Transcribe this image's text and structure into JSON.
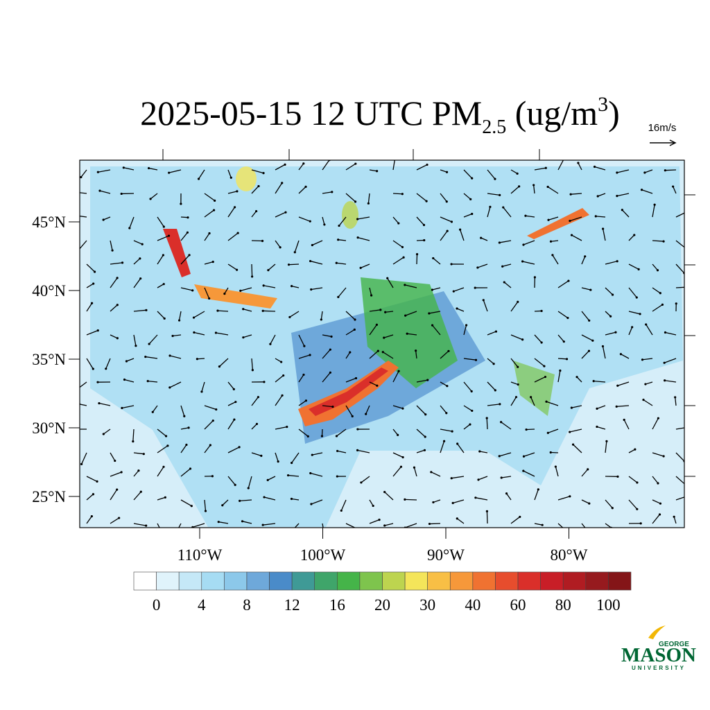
{
  "title": {
    "main": "2025-05-15 12 UTC PM",
    "sub": "2.5",
    "mid": " (ug/m",
    "sup": "3",
    "end": ")"
  },
  "wind_reference": {
    "label": "16m/s"
  },
  "map": {
    "lat_ticks": [
      {
        "value": 45,
        "label": "45°N"
      },
      {
        "value": 40,
        "label": "40°N"
      },
      {
        "value": 35,
        "label": "35°N"
      },
      {
        "value": 30,
        "label": "30°N"
      },
      {
        "value": 25,
        "label": "25°N"
      }
    ],
    "lon_ticks": [
      {
        "value": -110,
        "label": "110°W"
      },
      {
        "value": -100,
        "label": "100°W"
      },
      {
        "value": -90,
        "label": "90°W"
      },
      {
        "value": -80,
        "label": "80°W"
      }
    ]
  },
  "colorbar": {
    "colors": [
      "#ffffff",
      "#e0f3fb",
      "#c5e8f7",
      "#a6dcf3",
      "#8cc8ea",
      "#6ea8da",
      "#4a8bc9",
      "#3f9a96",
      "#3fa56a",
      "#45b449",
      "#7ec44d",
      "#bdd44f",
      "#f4e55a",
      "#f8bf45",
      "#f6983a",
      "#f07231",
      "#e74d2d",
      "#da2f2a",
      "#c81e27",
      "#b01c22",
      "#961a1e",
      "#841518"
    ],
    "ticks": [
      0,
      4,
      8,
      12,
      16,
      20,
      30,
      40,
      60,
      80,
      100
    ]
  },
  "logo": {
    "top": "GEORGE",
    "main": "MASON",
    "bottom": "UNIVERSITY"
  }
}
